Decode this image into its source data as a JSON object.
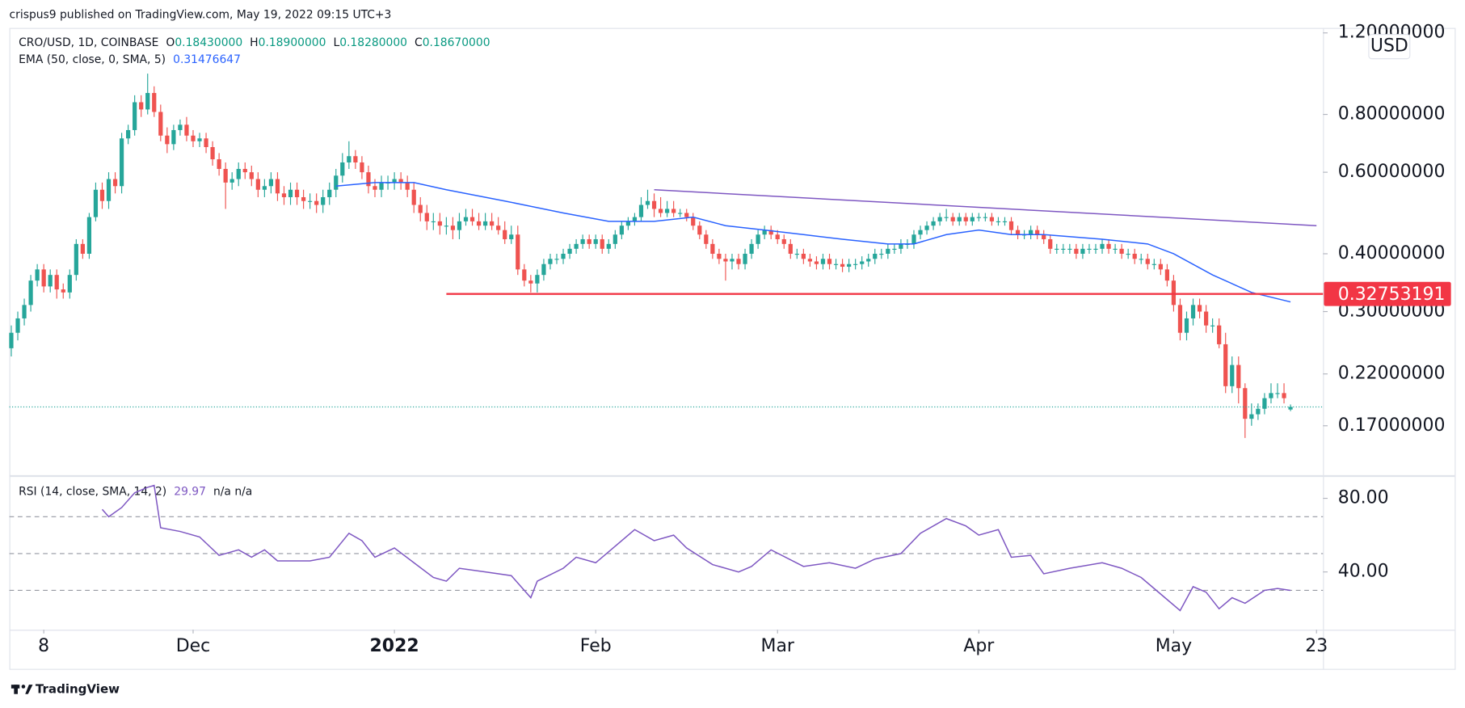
{
  "header": {
    "published": "crispus9 published on TradingView.com, May 19, 2022 09:15 UTC+3"
  },
  "footer": {
    "brand": "TradingView"
  },
  "chart_data": [
    {
      "type": "candlestick",
      "legend": {
        "symbol": "CRO/USD, 1D, COINBASE",
        "items": [
          {
            "key": "O",
            "value": "0.18430000"
          },
          {
            "key": "H",
            "value": "0.18900000"
          },
          {
            "key": "L",
            "value": "0.18280000"
          },
          {
            "key": "C",
            "value": "0.18670000"
          }
        ]
      },
      "currency": "USD",
      "up_color": "#26a69a",
      "down_color": "#ef5350",
      "log_scale": true,
      "xlim": [
        -0.3,
        202
      ],
      "xticks": [
        {
          "value": 5,
          "label": "8"
        },
        {
          "value": 28,
          "label": "Dec"
        },
        {
          "value": 59,
          "label": "2022"
        },
        {
          "value": 90,
          "label": "Feb"
        },
        {
          "value": 118,
          "label": "Mar"
        },
        {
          "value": 149,
          "label": "Apr"
        },
        {
          "value": 179,
          "label": "May"
        },
        {
          "value": 201,
          "label": "23"
        }
      ],
      "ylim": [
        0.133,
        1.23
      ],
      "yticks": [
        {
          "value": 1.2,
          "label": "1.20000000"
        },
        {
          "value": 0.8,
          "label": "0.80000000"
        },
        {
          "value": 0.6,
          "label": "0.60000000"
        },
        {
          "value": 0.4,
          "label": "0.40000000"
        },
        {
          "value": 0.3,
          "label": "0.30000000"
        },
        {
          "value": 0.22,
          "label": "0.22000000"
        },
        {
          "value": 0.17,
          "label": "0.17000000"
        }
      ],
      "open": [
        0.25,
        0.27,
        0.29,
        0.31,
        0.35,
        0.37,
        0.34,
        0.36,
        0.335,
        0.33,
        0.36,
        0.42,
        0.4,
        0.48,
        0.55,
        0.52,
        0.58,
        0.56,
        0.71,
        0.74,
        0.85,
        0.82,
        0.89,
        0.81,
        0.72,
        0.69,
        0.74,
        0.76,
        0.72,
        0.7,
        0.71,
        0.68,
        0.64,
        0.61,
        0.57,
        0.58,
        0.61,
        0.6,
        0.58,
        0.55,
        0.56,
        0.58,
        0.54,
        0.53,
        0.55,
        0.53,
        0.52,
        0.52,
        0.51,
        0.53,
        0.55,
        0.59,
        0.63,
        0.65,
        0.63,
        0.6,
        0.56,
        0.55,
        0.57,
        0.57,
        0.58,
        0.57,
        0.55,
        0.51,
        0.49,
        0.47,
        0.47,
        0.46,
        0.46,
        0.45,
        0.47,
        0.48,
        0.47,
        0.46,
        0.47,
        0.46,
        0.45,
        0.43,
        0.44,
        0.37,
        0.35,
        0.345,
        0.36,
        0.38,
        0.39,
        0.39,
        0.4,
        0.41,
        0.42,
        0.43,
        0.42,
        0.43,
        0.41,
        0.42,
        0.44,
        0.46,
        0.47,
        0.48,
        0.51,
        0.52,
        0.5,
        0.49,
        0.5,
        0.49,
        0.49,
        0.48,
        0.46,
        0.44,
        0.42,
        0.4,
        0.39,
        0.385,
        0.39,
        0.38,
        0.4,
        0.42,
        0.44,
        0.45,
        0.44,
        0.43,
        0.42,
        0.4,
        0.4,
        0.39,
        0.385,
        0.38,
        0.39,
        0.38,
        0.38,
        0.375,
        0.38,
        0.38,
        0.385,
        0.39,
        0.4,
        0.4,
        0.41,
        0.41,
        0.42,
        0.42,
        0.44,
        0.45,
        0.46,
        0.47,
        0.48,
        0.48,
        0.47,
        0.48,
        0.47,
        0.48,
        0.48,
        0.48,
        0.47,
        0.47,
        0.47,
        0.45,
        0.44,
        0.44,
        0.45,
        0.44,
        0.43,
        0.41,
        0.41,
        0.41,
        0.41,
        0.4,
        0.41,
        0.41,
        0.41,
        0.42,
        0.41,
        0.41,
        0.4,
        0.4,
        0.39,
        0.39,
        0.38,
        0.38,
        0.37,
        0.35,
        0.31,
        0.27,
        0.29,
        0.31,
        0.3,
        0.28,
        0.28,
        0.255,
        0.207,
        0.23,
        0.205,
        0.176,
        0.18,
        0.185,
        0.195,
        0.2,
        0.2,
        0.1843
      ],
      "high": [
        0.28,
        0.3,
        0.32,
        0.36,
        0.38,
        0.38,
        0.37,
        0.37,
        0.345,
        0.37,
        0.43,
        0.43,
        0.49,
        0.57,
        0.57,
        0.6,
        0.6,
        0.73,
        0.76,
        0.88,
        0.88,
        0.98,
        0.92,
        0.84,
        0.75,
        0.76,
        0.78,
        0.79,
        0.74,
        0.73,
        0.73,
        0.7,
        0.66,
        0.63,
        0.6,
        0.63,
        0.63,
        0.62,
        0.6,
        0.58,
        0.6,
        0.6,
        0.56,
        0.57,
        0.57,
        0.55,
        0.54,
        0.54,
        0.55,
        0.57,
        0.61,
        0.66,
        0.7,
        0.67,
        0.65,
        0.62,
        0.58,
        0.59,
        0.59,
        0.6,
        0.6,
        0.59,
        0.57,
        0.53,
        0.51,
        0.49,
        0.49,
        0.48,
        0.48,
        0.49,
        0.5,
        0.5,
        0.49,
        0.49,
        0.49,
        0.48,
        0.47,
        0.46,
        0.46,
        0.38,
        0.36,
        0.37,
        0.39,
        0.4,
        0.4,
        0.41,
        0.42,
        0.43,
        0.44,
        0.44,
        0.44,
        0.44,
        0.43,
        0.45,
        0.47,
        0.48,
        0.49,
        0.53,
        0.55,
        0.54,
        0.53,
        0.52,
        0.52,
        0.5,
        0.5,
        0.49,
        0.47,
        0.45,
        0.43,
        0.41,
        0.4,
        0.4,
        0.4,
        0.41,
        0.43,
        0.45,
        0.46,
        0.46,
        0.45,
        0.44,
        0.43,
        0.41,
        0.41,
        0.4,
        0.395,
        0.4,
        0.4,
        0.39,
        0.39,
        0.39,
        0.39,
        0.395,
        0.4,
        0.41,
        0.41,
        0.42,
        0.42,
        0.43,
        0.43,
        0.45,
        0.46,
        0.47,
        0.48,
        0.49,
        0.5,
        0.49,
        0.49,
        0.49,
        0.49,
        0.49,
        0.49,
        0.49,
        0.48,
        0.48,
        0.48,
        0.46,
        0.45,
        0.46,
        0.46,
        0.45,
        0.44,
        0.42,
        0.42,
        0.42,
        0.42,
        0.42,
        0.42,
        0.42,
        0.43,
        0.43,
        0.42,
        0.42,
        0.41,
        0.41,
        0.4,
        0.4,
        0.39,
        0.39,
        0.38,
        0.36,
        0.32,
        0.3,
        0.32,
        0.32,
        0.31,
        0.29,
        0.29,
        0.27,
        0.24,
        0.24,
        0.21,
        0.19,
        0.19,
        0.2,
        0.21,
        0.21,
        0.21,
        0.189
      ],
      "low": [
        0.24,
        0.26,
        0.28,
        0.3,
        0.34,
        0.33,
        0.33,
        0.32,
        0.32,
        0.32,
        0.35,
        0.39,
        0.39,
        0.47,
        0.5,
        0.5,
        0.54,
        0.54,
        0.69,
        0.72,
        0.79,
        0.8,
        0.79,
        0.7,
        0.66,
        0.67,
        0.72,
        0.7,
        0.68,
        0.68,
        0.66,
        0.62,
        0.59,
        0.5,
        0.55,
        0.56,
        0.58,
        0.56,
        0.53,
        0.53,
        0.54,
        0.52,
        0.51,
        0.51,
        0.51,
        0.5,
        0.5,
        0.49,
        0.49,
        0.51,
        0.53,
        0.57,
        0.61,
        0.61,
        0.58,
        0.54,
        0.53,
        0.53,
        0.55,
        0.55,
        0.55,
        0.53,
        0.49,
        0.47,
        0.45,
        0.45,
        0.44,
        0.44,
        0.43,
        0.43,
        0.46,
        0.46,
        0.45,
        0.45,
        0.45,
        0.44,
        0.42,
        0.42,
        0.36,
        0.34,
        0.33,
        0.33,
        0.35,
        0.37,
        0.38,
        0.38,
        0.39,
        0.4,
        0.41,
        0.41,
        0.41,
        0.4,
        0.4,
        0.41,
        0.43,
        0.45,
        0.46,
        0.47,
        0.5,
        0.48,
        0.48,
        0.48,
        0.48,
        0.48,
        0.47,
        0.45,
        0.43,
        0.41,
        0.39,
        0.38,
        0.35,
        0.37,
        0.37,
        0.37,
        0.39,
        0.41,
        0.43,
        0.43,
        0.42,
        0.41,
        0.39,
        0.39,
        0.38,
        0.375,
        0.37,
        0.37,
        0.37,
        0.37,
        0.365,
        0.365,
        0.37,
        0.37,
        0.375,
        0.38,
        0.39,
        0.39,
        0.4,
        0.4,
        0.41,
        0.41,
        0.43,
        0.44,
        0.45,
        0.46,
        0.47,
        0.46,
        0.46,
        0.46,
        0.46,
        0.47,
        0.47,
        0.46,
        0.46,
        0.46,
        0.44,
        0.43,
        0.43,
        0.43,
        0.43,
        0.42,
        0.4,
        0.4,
        0.4,
        0.4,
        0.39,
        0.39,
        0.4,
        0.4,
        0.4,
        0.4,
        0.4,
        0.39,
        0.39,
        0.38,
        0.38,
        0.37,
        0.37,
        0.36,
        0.34,
        0.3,
        0.26,
        0.26,
        0.28,
        0.29,
        0.27,
        0.27,
        0.25,
        0.2,
        0.2,
        0.19,
        0.16,
        0.17,
        0.175,
        0.18,
        0.19,
        0.195,
        0.19,
        0.1828
      ],
      "close": [
        0.27,
        0.29,
        0.31,
        0.35,
        0.37,
        0.34,
        0.36,
        0.335,
        0.33,
        0.36,
        0.42,
        0.4,
        0.48,
        0.55,
        0.52,
        0.58,
        0.56,
        0.71,
        0.74,
        0.85,
        0.82,
        0.89,
        0.81,
        0.72,
        0.69,
        0.74,
        0.76,
        0.72,
        0.7,
        0.71,
        0.68,
        0.64,
        0.61,
        0.57,
        0.58,
        0.61,
        0.6,
        0.58,
        0.55,
        0.56,
        0.58,
        0.54,
        0.53,
        0.55,
        0.53,
        0.52,
        0.52,
        0.51,
        0.53,
        0.55,
        0.59,
        0.63,
        0.65,
        0.63,
        0.6,
        0.56,
        0.55,
        0.57,
        0.57,
        0.58,
        0.57,
        0.55,
        0.51,
        0.49,
        0.47,
        0.47,
        0.46,
        0.46,
        0.45,
        0.47,
        0.48,
        0.47,
        0.46,
        0.47,
        0.46,
        0.45,
        0.43,
        0.44,
        0.37,
        0.35,
        0.345,
        0.36,
        0.38,
        0.39,
        0.39,
        0.4,
        0.41,
        0.42,
        0.43,
        0.42,
        0.43,
        0.41,
        0.42,
        0.44,
        0.46,
        0.47,
        0.48,
        0.51,
        0.52,
        0.5,
        0.49,
        0.5,
        0.49,
        0.49,
        0.48,
        0.46,
        0.44,
        0.42,
        0.4,
        0.39,
        0.385,
        0.39,
        0.38,
        0.4,
        0.42,
        0.44,
        0.45,
        0.44,
        0.43,
        0.42,
        0.4,
        0.4,
        0.39,
        0.385,
        0.38,
        0.39,
        0.38,
        0.38,
        0.375,
        0.38,
        0.38,
        0.385,
        0.39,
        0.4,
        0.4,
        0.41,
        0.41,
        0.42,
        0.42,
        0.44,
        0.45,
        0.46,
        0.47,
        0.48,
        0.48,
        0.47,
        0.48,
        0.47,
        0.48,
        0.48,
        0.48,
        0.47,
        0.47,
        0.47,
        0.45,
        0.44,
        0.44,
        0.45,
        0.44,
        0.43,
        0.41,
        0.41,
        0.41,
        0.41,
        0.4,
        0.41,
        0.41,
        0.41,
        0.42,
        0.41,
        0.41,
        0.4,
        0.4,
        0.39,
        0.39,
        0.38,
        0.38,
        0.37,
        0.35,
        0.31,
        0.27,
        0.29,
        0.31,
        0.3,
        0.28,
        0.28,
        0.255,
        0.207,
        0.23,
        0.205,
        0.176,
        0.18,
        0.185,
        0.195,
        0.2,
        0.2,
        0.195,
        0.1867
      ],
      "series": [
        {
          "name": "EMA (50, close, 0, SMA, 5)",
          "value_label": "0.31476647",
          "color": "#2962ff",
          "x": [
            50,
            56,
            62,
            67,
            76,
            85,
            92,
            99,
            105,
            110,
            116,
            122,
            128,
            135,
            139,
            144,
            149,
            154,
            159,
            168,
            175,
            179,
            185,
            191,
            197
          ],
          "values": [
            0.56,
            0.57,
            0.57,
            0.55,
            0.52,
            0.49,
            0.47,
            0.47,
            0.48,
            0.46,
            0.45,
            0.44,
            0.43,
            0.42,
            0.42,
            0.44,
            0.45,
            0.44,
            0.44,
            0.43,
            0.42,
            0.4,
            0.36,
            0.33,
            0.31476647
          ]
        }
      ],
      "trendline": {
        "color": "#7e57c2",
        "x": [
          99,
          201
        ],
        "values": [
          0.55,
          0.46
        ]
      },
      "level": {
        "value": 0.32753191,
        "x_start": 67,
        "color": "#f23645"
      },
      "last_price_line_color": "#26a69a"
    },
    {
      "type": "line",
      "legend": {
        "name": "RSI (14, close, SMA, 14, 2)",
        "value": "29.97",
        "extra": "n/a n/a"
      },
      "color": "#7e57c2",
      "xlim": [
        -0.3,
        202
      ],
      "ylim": [
        8.6,
        91.6
      ],
      "yticks": [
        {
          "value": 80,
          "label": "80.00"
        },
        {
          "value": 40,
          "label": "40.00"
        }
      ],
      "bands": [
        70,
        50,
        30
      ],
      "x": [
        14,
        15,
        17,
        19,
        21,
        22,
        23,
        26,
        29,
        32,
        35,
        37,
        39,
        41,
        46,
        49,
        52,
        54,
        56,
        59,
        62,
        65,
        67,
        69,
        73,
        77,
        80,
        81,
        85,
        87,
        90,
        93,
        96,
        99,
        102,
        104,
        108,
        112,
        114,
        117,
        122,
        126,
        130,
        133,
        137,
        140,
        144,
        147,
        149,
        152,
        154,
        157,
        159,
        163,
        168,
        171,
        174,
        177,
        180,
        182,
        184,
        186,
        188,
        190,
        193,
        195,
        197
      ],
      "values": [
        74,
        70,
        75,
        83,
        86,
        87,
        64,
        62,
        59,
        49,
        52,
        48,
        52,
        46,
        46,
        48,
        61,
        57,
        48,
        53,
        45,
        37,
        35,
        42,
        40,
        38,
        26,
        35,
        42,
        48,
        45,
        54,
        63,
        57,
        60,
        53,
        44,
        40,
        43,
        52,
        43,
        45,
        42,
        47,
        50,
        61,
        69,
        65,
        60,
        63,
        48,
        49,
        39,
        42,
        45,
        42,
        37,
        28,
        19,
        32,
        29,
        20,
        26,
        23,
        30,
        31,
        29.97
      ]
    }
  ]
}
